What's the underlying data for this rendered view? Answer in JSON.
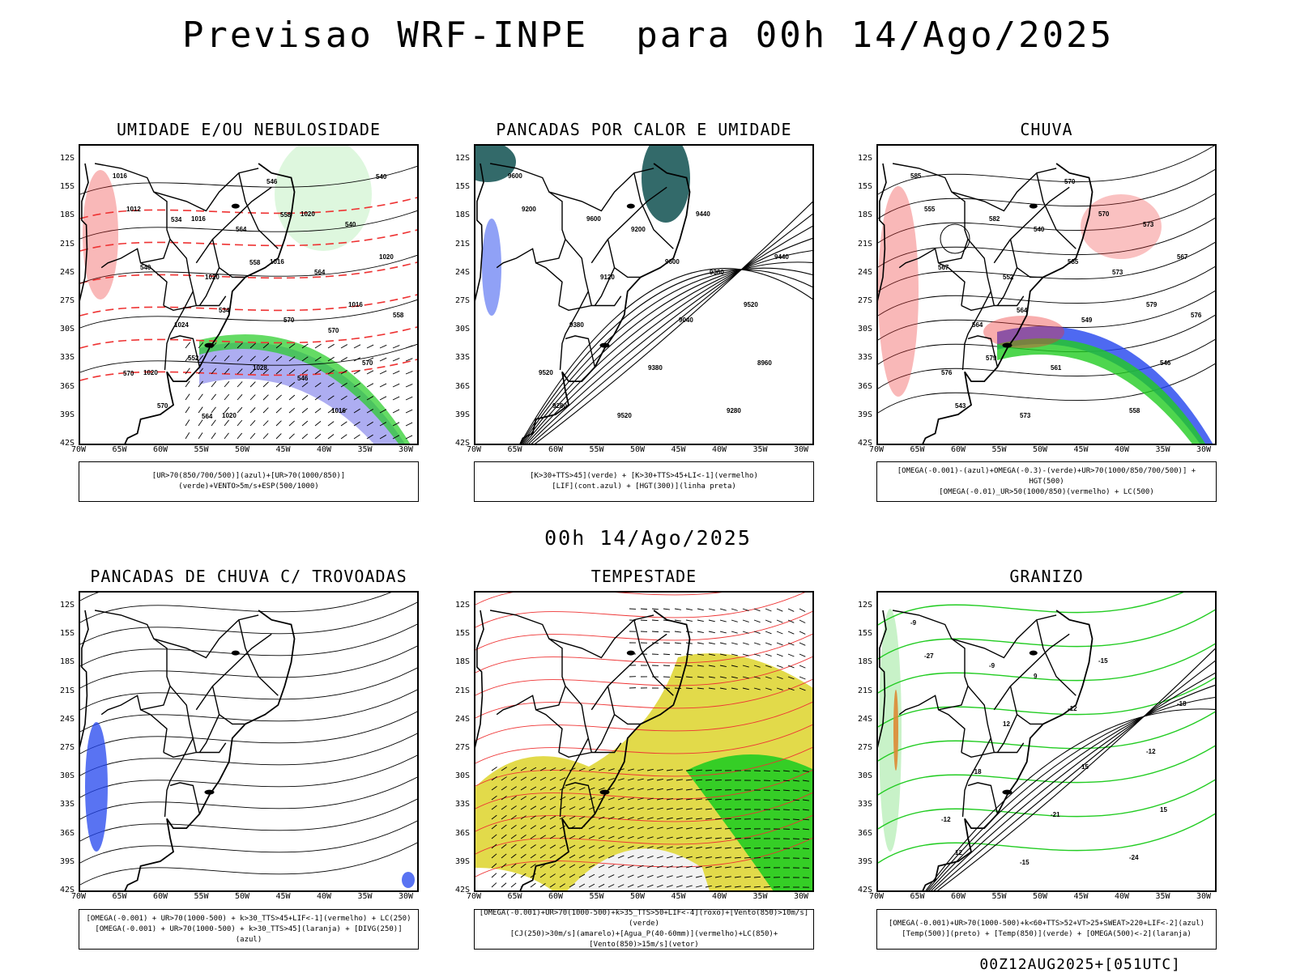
{
  "header": {
    "title": "Previsao WRF-INPE  para 00h 14/Ago/2025"
  },
  "mid_date": "00h 14/Ago/2025",
  "footer": "00Z12AUG2025+[051UTC]",
  "axes": {
    "lat_labels": [
      "12S",
      "15S",
      "18S",
      "21S",
      "24S",
      "27S",
      "30S",
      "33S",
      "36S",
      "39S",
      "42S"
    ],
    "lon_labels": [
      "70W",
      "65W",
      "60W",
      "55W",
      "50W",
      "45W",
      "40W",
      "35W",
      "30W"
    ]
  },
  "colors": {
    "green": "#22cc22",
    "red": "#ee3333",
    "blue": "#2244ee",
    "lavender": "#9999ee",
    "yellow": "#e0d840",
    "teal": "#1d5a5a",
    "orange": "#dd8833"
  },
  "panels": [
    {
      "title": "UMIDADE E/OU NEBULOSIDADE",
      "legend": [
        "[UR>70(850/700/500)](azul)+[UR>70(1000/850)](verde)+VENTO>5m/s+ESP(500/1000)"
      ],
      "contour_labels": [
        "1016",
        "1016",
        "1016",
        "1016",
        "1020",
        "1020",
        "1020",
        "1020",
        "1024",
        "1028",
        "1016",
        "1012",
        "1020",
        "570",
        "570",
        "570",
        "564",
        "564",
        "558",
        "552",
        "546",
        "540",
        "540",
        "534",
        "546",
        "540",
        "534",
        "558",
        "570",
        "570",
        "564",
        "558"
      ]
    },
    {
      "title": "PANCADAS POR CALOR E UMIDADE",
      "legend": [
        "[K>30+TTS>45](verde) + [K>30+TTS>45+LI<-1](vermelho)",
        "[LIF](cont.azul) + [HGT(300)](linha preta)"
      ],
      "contour_labels": [
        "9600",
        "9600",
        "9600",
        "9520",
        "9520",
        "9520",
        "9440",
        "9440",
        "9380",
        "9380",
        "9280",
        "9200",
        "9120",
        "9040",
        "8960",
        "9280",
        "9200",
        "9360"
      ]
    },
    {
      "title": "CHUVA",
      "legend": [
        "[OMEGA(-0.001)-(azul)+OMEGA(-0.3)-(verde)+UR>70(1000/850/700/500)] + HGT(500)",
        "[OMEGA(-0.01)_UR>50(1000/850)(vermelho) + LC(500)"
      ],
      "contour_labels": [
        "585",
        "582",
        "585",
        "579",
        "576",
        "573",
        "570",
        "567",
        "564",
        "561",
        "558",
        "555",
        "552",
        "549",
        "546",
        "543",
        "540",
        "573",
        "576",
        "579",
        "570",
        "573",
        "567",
        "564"
      ]
    },
    {
      "title": "PANCADAS DE CHUVA C/ TROVOADAS",
      "legend": [
        "[OMEGA(-0.001) + UR>70(1000-500) + k>30_TTS>45+LIF<-1](vermelho) + LC(250)",
        "[OMEGA(-0.001) + UR>70(1000-500) + k>30_TTS>45](laranja) + [DIVG(250)](azul)"
      ],
      "contour_labels": []
    },
    {
      "title": "TEMPESTADE",
      "legend": [
        "[OMEGA(-0.001)+UR>70(1000-500)+k>35_TTS>50+LIF<-4](roxo)+[Vento(850)>10m/s](verde)",
        "[CJ(250)>30m/s](amarelo)+[Agua_P(40-60mm)](vermelho)+LC(850)+[Vento(850)>15m/s](vetor)"
      ],
      "contour_labels": []
    },
    {
      "title": "GRANIZO",
      "legend": [
        "[OMEGA(-0.001)+UR>70(1000-500)+k<60+TTS>52+VT>25+SWEAT>220+LIF<-2](azul)",
        "[Temp(500)](preto) + [Temp(850)](verde) + [OMEGA(500)<-2](laranja)"
      ],
      "contour_labels": [
        "-9",
        "-9",
        "-12",
        "-12",
        "-12",
        "-15",
        "-15",
        "-18",
        "-18",
        "-21",
        "-24",
        "-27",
        "12",
        "15",
        "15",
        "12",
        "9"
      ]
    }
  ]
}
